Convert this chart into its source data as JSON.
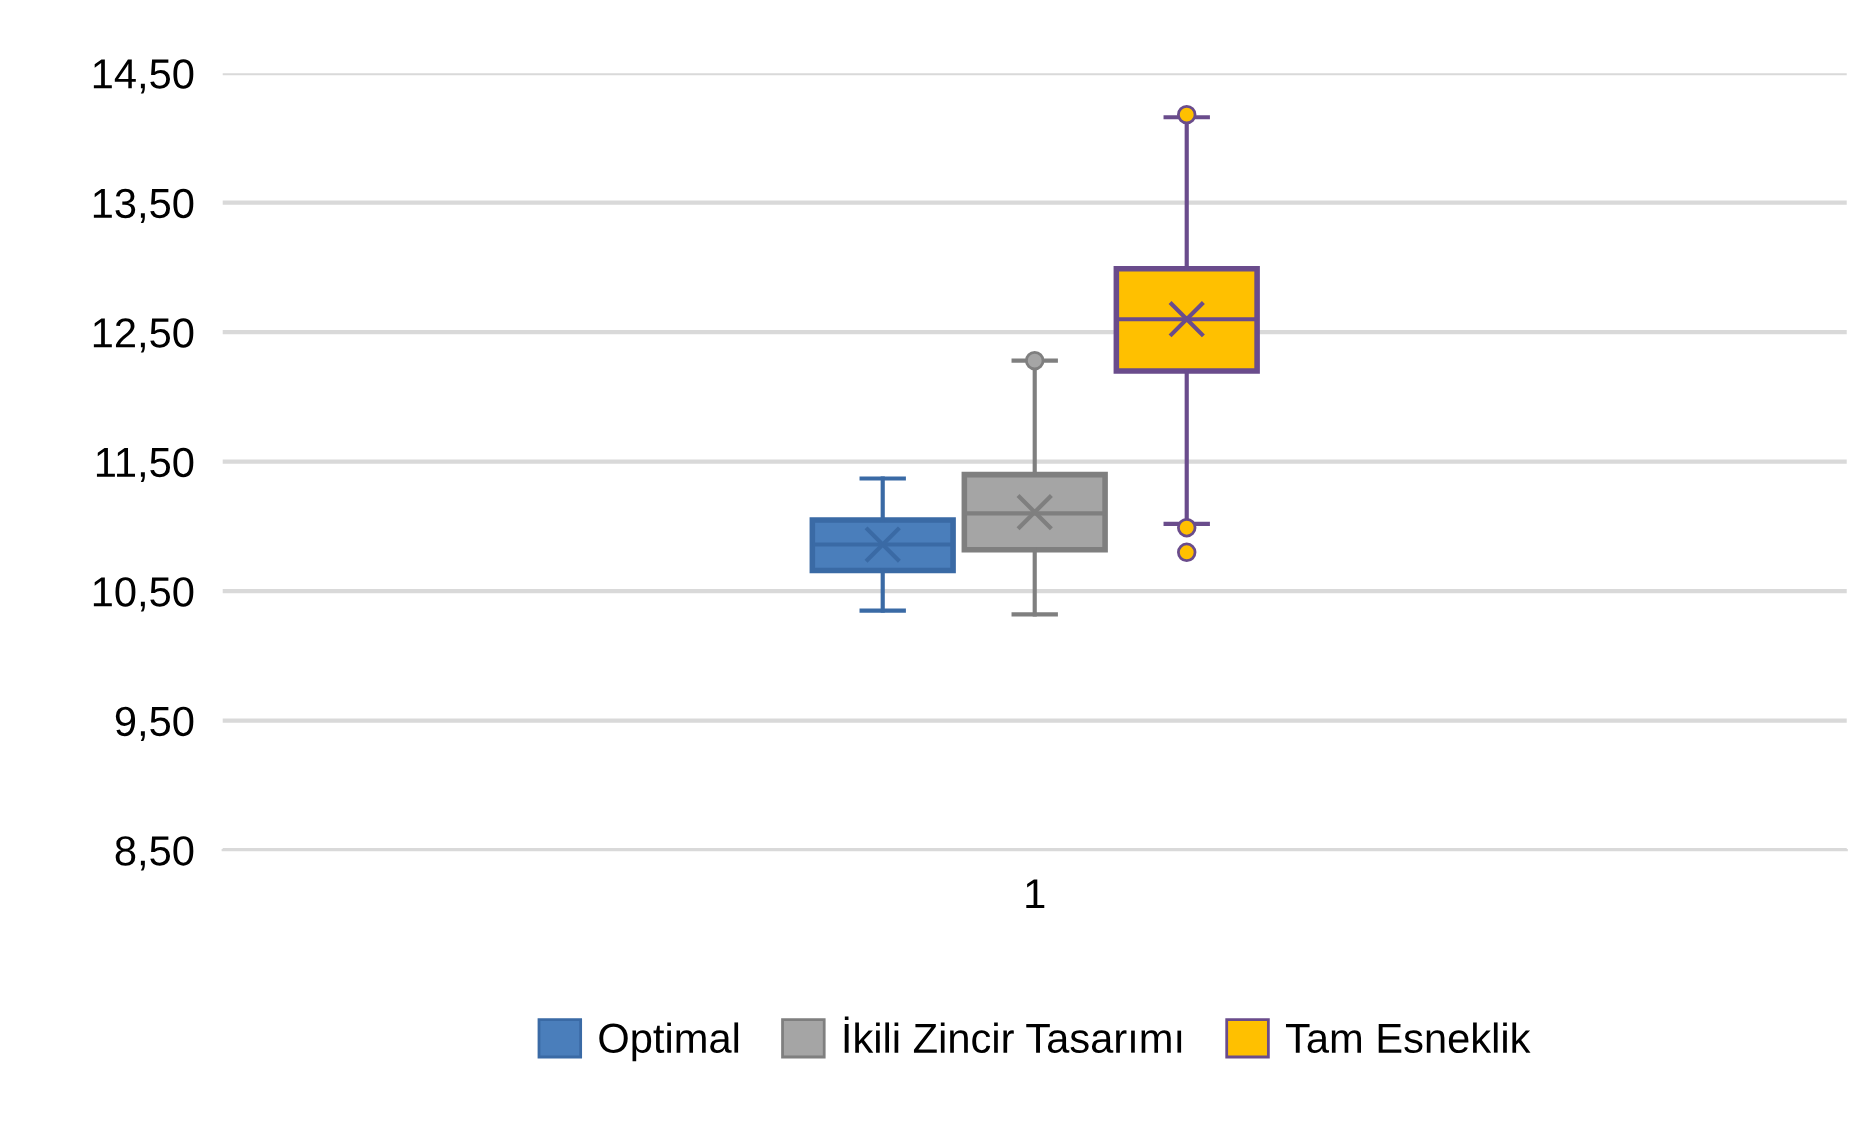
{
  "chart_data": {
    "type": "box",
    "categories": [
      "1"
    ],
    "ylim": [
      8.5,
      14.5
    ],
    "yticks": [
      {
        "value": 8.5,
        "label": "8,50"
      },
      {
        "value": 9.5,
        "label": "9,50"
      },
      {
        "value": 10.5,
        "label": "10,50"
      },
      {
        "value": 11.5,
        "label": "11,50"
      },
      {
        "value": 12.5,
        "label": "12,50"
      },
      {
        "value": 13.5,
        "label": "13,50"
      },
      {
        "value": 14.5,
        "label": "14,50"
      }
    ],
    "grid": "y",
    "legend": "bottom",
    "series": [
      {
        "name": "Optimal",
        "color": "#4a7ebb",
        "boxes": [
          {
            "low": 10.35,
            "q1": 10.66,
            "median": 10.86,
            "q3": 11.05,
            "high": 11.37,
            "mean": 10.86
          }
        ]
      },
      {
        "name": "İkili Zincir Tasarımı",
        "color": "#a5a5a5",
        "boxes": [
          {
            "low": 10.32,
            "q1": 10.82,
            "median": 11.1,
            "q3": 11.4,
            "high": 12.28,
            "mean": 11.11,
            "outliers": [
              12.28
            ]
          }
        ]
      },
      {
        "name": "Tam Esneklik",
        "color": "#ffc000",
        "boxes": [
          {
            "low": 11.02,
            "q1": 12.2,
            "median": 12.6,
            "q3": 12.99,
            "high": 14.16,
            "mean": 12.6,
            "outliers": [
              14.18,
              10.99,
              10.8
            ]
          }
        ]
      }
    ]
  }
}
